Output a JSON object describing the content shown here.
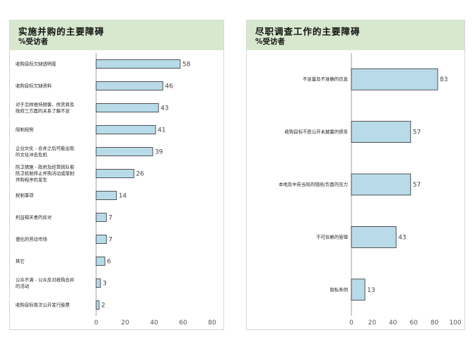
{
  "chart_data": [
    {
      "type": "bar",
      "orientation": "horizontal",
      "title": "实施并购的主要障碍",
      "subtitle": "%受访者",
      "categories": [
        [
          "收购目标欠缺透明度"
        ],
        [
          "收购目标欠缺资料"
        ],
        [
          "对于怎样维持顾客、供货商及",
          "政府三方面的关系了解不足"
        ],
        [
          "限制规例"
        ],
        [
          "企业文化 - 合并之后可能出现",
          "的文化冲击危机"
        ],
        [
          "防卫措施 - 政府及经营团队根",
          "防卫机制停止并购活动或限制",
          "并购程序的发生"
        ],
        [
          "税制事项"
        ],
        [
          "利益相关者的反对"
        ],
        [
          "僵化的劳动市场"
        ],
        [
          "其它"
        ],
        [
          "公众不满 - 公众反对收购合并",
          "的活动"
        ],
        [
          "收购目标首次公开发行股票"
        ]
      ],
      "values": [
        58,
        46,
        43,
        41,
        39,
        26,
        14,
        7,
        7,
        6,
        3,
        2
      ],
      "xlim": [
        0,
        80
      ],
      "xticks": [
        0,
        20,
        40,
        60,
        80
      ],
      "bar_color": "#b9dbe9",
      "bar_edge": "#2c2c2c"
    },
    {
      "type": "bar",
      "orientation": "horizontal",
      "title": "尽职调查工作的主要障碍",
      "subtitle": "%受访者",
      "categories": [
        [
          "不足量及不准确的信息"
        ],
        [
          "收购目标不愿公开未披露的债务"
        ],
        [
          "本地及中央当局的阻挠/负面的压力"
        ],
        [
          "不可信赖的管理"
        ],
        [
          "隐私条例"
        ]
      ],
      "values": [
        83,
        57,
        57,
        43,
        13
      ],
      "xlim": [
        0,
        100
      ],
      "xticks": [
        0,
        20,
        40,
        60,
        80,
        100
      ],
      "bar_color": "#b9dbe9",
      "bar_edge": "#2c2c2c"
    }
  ]
}
